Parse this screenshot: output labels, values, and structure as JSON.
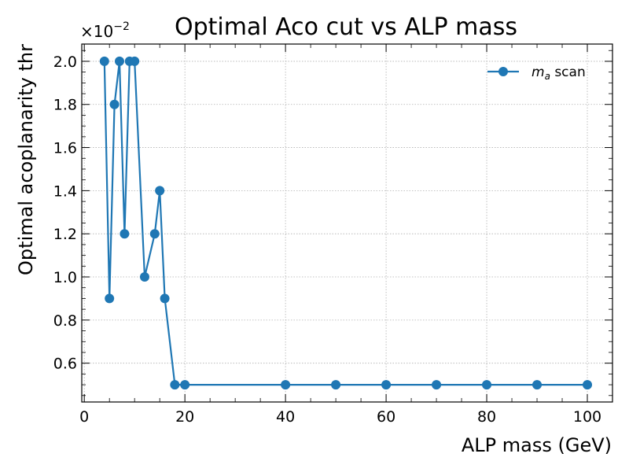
{
  "chart_data": {
    "type": "line",
    "title": "Optimal Aco cut vs ALP mass",
    "xlabel": "ALP mass (GeV)",
    "ylabel": "Optimal acoplanarity thr",
    "y_offset_base": "×10",
    "y_offset_exp": "−2",
    "xlim": [
      -0.5,
      105
    ],
    "ylim": [
      0.42,
      2.08
    ],
    "xticks": [
      0,
      20,
      40,
      60,
      80,
      100
    ],
    "xtick_labels": [
      "0",
      "20",
      "40",
      "60",
      "80",
      "100"
    ],
    "yticks": [
      0.6,
      0.8,
      1.0,
      1.2,
      1.4,
      1.6,
      1.8,
      2.0
    ],
    "ytick_labels": [
      "0.6",
      "0.8",
      "1.0",
      "1.2",
      "1.4",
      "1.6",
      "1.8",
      "2.0"
    ],
    "grid": true,
    "legend_position": "top-right",
    "series": [
      {
        "name_main": "m",
        "name_sub": "a",
        "name_rest": " scan",
        "color": "#1f77b4",
        "marker": "circle",
        "x": [
          4,
          5,
          6,
          7,
          8,
          9,
          10,
          12,
          14,
          15,
          16,
          18,
          20,
          40,
          50,
          60,
          70,
          80,
          90,
          100
        ],
        "y": [
          2.0,
          0.9,
          1.8,
          2.0,
          1.2,
          2.0,
          2.0,
          1.0,
          1.2,
          1.4,
          0.9,
          0.5,
          0.5,
          0.5,
          0.5,
          0.5,
          0.5,
          0.5,
          0.5,
          0.5
        ]
      }
    ]
  }
}
